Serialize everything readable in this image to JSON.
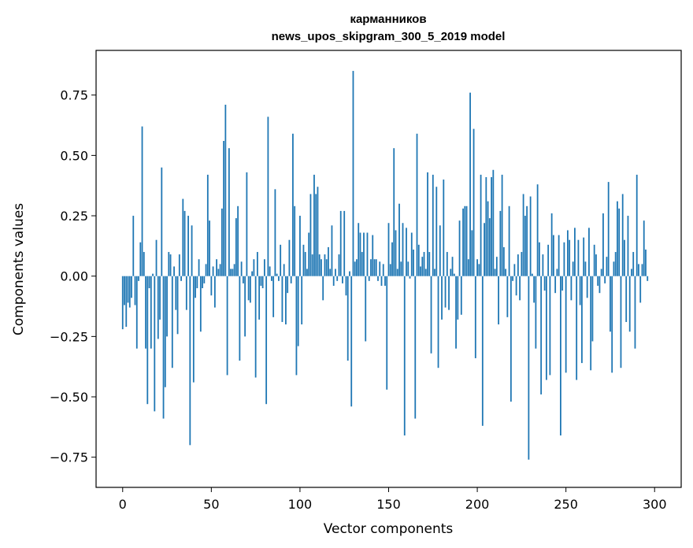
{
  "chart_data": {
    "type": "bar",
    "title_line1": "карманников",
    "title_line2": "news_upos_skipgram_300_5_2019 model",
    "xlabel": "Vector components",
    "ylabel": "Components values",
    "xlim": [
      -15,
      315
    ],
    "ylim": [
      -0.875,
      0.935
    ],
    "x_ticks": [
      0,
      50,
      100,
      150,
      200,
      250,
      300
    ],
    "x_tick_labels": [
      "0",
      "50",
      "100",
      "150",
      "200",
      "250",
      "300"
    ],
    "y_ticks": [
      0.75,
      0.5,
      0.25,
      0.0,
      -0.25,
      -0.5,
      -0.75
    ],
    "y_tick_labels": [
      "0.75",
      "0.50",
      "0.25",
      "0.00",
      "−0.25",
      "−0.50",
      "−0.75"
    ],
    "bar_color": "#1f77b4",
    "values": [
      -0.22,
      -0.12,
      -0.21,
      -0.11,
      -0.13,
      -0.09,
      0.25,
      -0.12,
      -0.3,
      -0.02,
      0.14,
      0.62,
      0.1,
      -0.3,
      -0.53,
      -0.05,
      -0.3,
      0.01,
      -0.56,
      0.15,
      -0.26,
      -0.18,
      0.45,
      -0.59,
      -0.46,
      -0.25,
      0.1,
      0.09,
      -0.38,
      0.04,
      -0.14,
      -0.24,
      0.09,
      -0.02,
      0.32,
      0.27,
      -0.14,
      0.25,
      -0.7,
      0.21,
      -0.44,
      -0.09,
      -0.05,
      0.07,
      -0.23,
      -0.05,
      -0.03,
      0.05,
      0.42,
      0.23,
      -0.08,
      0.04,
      -0.13,
      0.07,
      0.03,
      0.05,
      0.28,
      0.56,
      0.71,
      -0.41,
      0.53,
      0.03,
      0.03,
      0.05,
      0.24,
      0.29,
      -0.35,
      0.06,
      -0.03,
      -0.25,
      0.43,
      -0.1,
      -0.11,
      0.02,
      0.07,
      -0.42,
      0.1,
      -0.18,
      -0.04,
      -0.05,
      0.07,
      -0.53,
      0.66,
      0.04,
      -0.02,
      -0.17,
      0.36,
      0.01,
      -0.02,
      0.13,
      -0.19,
      0.05,
      -0.2,
      -0.07,
      0.15,
      -0.03,
      0.59,
      0.29,
      -0.41,
      -0.29,
      0.25,
      -0.2,
      0.13,
      0.1,
      0.03,
      0.18,
      0.34,
      0.09,
      0.42,
      0.34,
      0.37,
      0.09,
      0.07,
      -0.1,
      0.09,
      0.07,
      0.12,
      0.03,
      0.21,
      -0.04,
      0.03,
      -0.02,
      0.09,
      0.27,
      -0.03,
      0.27,
      -0.08,
      -0.35,
      0.02,
      -0.54,
      0.85,
      0.06,
      0.07,
      0.22,
      0.18,
      0.1,
      0.18,
      -0.27,
      0.18,
      -0.02,
      0.07,
      0.17,
      0.07,
      0.07,
      -0.02,
      0.06,
      -0.04,
      0.05,
      -0.04,
      -0.47,
      0.22,
      0.05,
      0.14,
      0.53,
      0.19,
      0.03,
      0.3,
      0.06,
      0.22,
      -0.66,
      0.2,
      0.06,
      -0.01,
      0.18,
      0.11,
      -0.59,
      0.59,
      0.13,
      0.04,
      0.08,
      0.1,
      0.03,
      0.43,
      0.1,
      -0.32,
      0.42,
      0.03,
      0.37,
      -0.38,
      0.21,
      -0.18,
      0.4,
      -0.13,
      0.1,
      -0.14,
      0.03,
      0.08,
      0.01,
      -0.3,
      -0.18,
      0.23,
      -0.16,
      0.28,
      0.29,
      0.29,
      0.07,
      0.76,
      0.19,
      0.61,
      -0.34,
      0.07,
      0.05,
      0.42,
      -0.62,
      0.22,
      0.41,
      0.31,
      0.24,
      0.41,
      0.44,
      0.03,
      0.08,
      -0.2,
      0.27,
      0.42,
      0.12,
      0.03,
      -0.17,
      0.29,
      -0.52,
      -0.02,
      0.05,
      -0.08,
      0.09,
      -0.1,
      0.1,
      0.34,
      0.25,
      0.29,
      -0.76,
      0.33,
      0.01,
      -0.11,
      -0.3,
      0.38,
      0.14,
      -0.49,
      0.09,
      -0.06,
      -0.43,
      0.13,
      -0.41,
      0.26,
      0.17,
      -0.07,
      0.03,
      0.17,
      -0.66,
      -0.06,
      0.14,
      -0.4,
      0.19,
      0.15,
      -0.1,
      0.06,
      0.2,
      -0.43,
      0.15,
      -0.12,
      -0.36,
      0.16,
      0.06,
      -0.09,
      0.2,
      -0.39,
      -0.27,
      0.13,
      0.09,
      -0.04,
      -0.07,
      0.03,
      0.26,
      -0.03,
      0.08,
      0.39,
      -0.23,
      -0.4,
      0.06,
      0.1,
      0.31,
      0.28,
      -0.38,
      0.34,
      0.15,
      -0.19,
      0.25,
      -0.23,
      0.03,
      0.1,
      -0.3,
      0.42,
      0.05,
      -0.11,
      0.05,
      0.23,
      0.11,
      -0.02
    ]
  }
}
